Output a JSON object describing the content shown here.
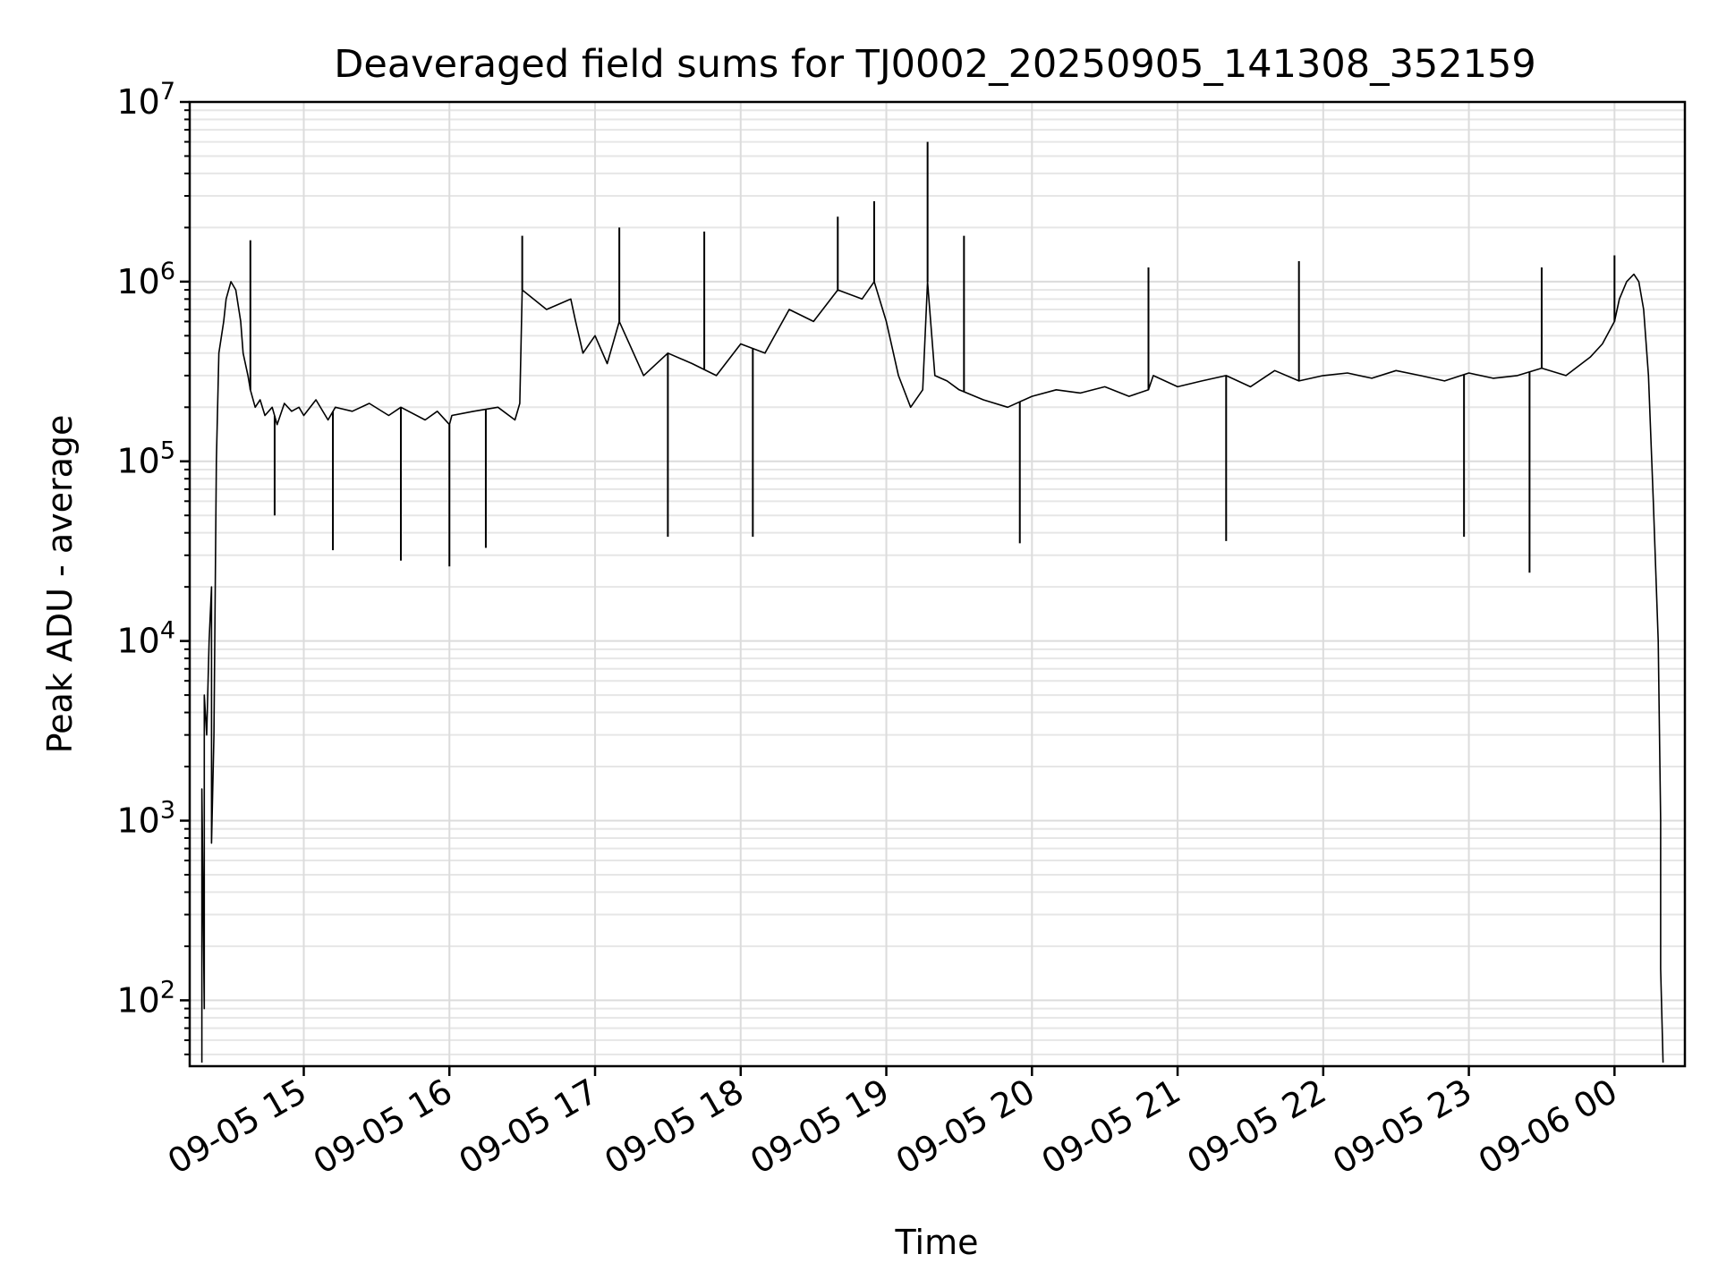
{
  "chart_data": {
    "type": "line",
    "title": "Deaveraged field sums for TJ0002_20250905_141308_352159",
    "xlabel": "Time",
    "ylabel": "Peak ADU - average",
    "yscale": "log",
    "ylim": [
      43,
      10000000
    ],
    "xlim": [
      "2025-09-05 14:13",
      "2025-09-06 00:29"
    ],
    "grid": true,
    "line_color": "#000000",
    "x_ticks": [
      {
        "x": "2025-09-05 15:00",
        "label": "09-05 15"
      },
      {
        "x": "2025-09-05 16:00",
        "label": "09-05 16"
      },
      {
        "x": "2025-09-05 17:00",
        "label": "09-05 17"
      },
      {
        "x": "2025-09-05 18:00",
        "label": "09-05 18"
      },
      {
        "x": "2025-09-05 19:00",
        "label": "09-05 19"
      },
      {
        "x": "2025-09-05 20:00",
        "label": "09-05 20"
      },
      {
        "x": "2025-09-05 21:00",
        "label": "09-05 21"
      },
      {
        "x": "2025-09-05 22:00",
        "label": "09-05 22"
      },
      {
        "x": "2025-09-05 23:00",
        "label": "09-05 23"
      },
      {
        "x": "2025-09-06 00:00",
        "label": "09-06 00"
      }
    ],
    "y_ticks": [
      {
        "value": 100,
        "base": "10",
        "exp": "2"
      },
      {
        "value": 1000,
        "base": "10",
        "exp": "3"
      },
      {
        "value": 10000,
        "base": "10",
        "exp": "4"
      },
      {
        "value": 100000,
        "base": "10",
        "exp": "5"
      },
      {
        "value": 1000000,
        "base": "10",
        "exp": "6"
      },
      {
        "value": 10000000,
        "base": "10",
        "exp": "7"
      }
    ],
    "series": [
      {
        "x": [
          "2025-09-05 14:18",
          "2025-09-05 14:18",
          "2025-09-05 14:19",
          "2025-09-05 14:19",
          "2025-09-05 14:20",
          "2025-09-05 14:21",
          "2025-09-05 14:22",
          "2025-09-05 14:22",
          "2025-09-05 14:23",
          "2025-09-05 14:24",
          "2025-09-05 14:25",
          "2025-09-05 14:27",
          "2025-09-05 14:28",
          "2025-09-05 14:30",
          "2025-09-05 14:32",
          "2025-09-05 14:34",
          "2025-09-05 14:35",
          "2025-09-05 14:37",
          "2025-09-05 14:38",
          "2025-09-05 14:40",
          "2025-09-05 14:42",
          "2025-09-05 14:44",
          "2025-09-05 14:47",
          "2025-09-05 14:49",
          "2025-09-05 14:52",
          "2025-09-05 14:55",
          "2025-09-05 14:58",
          "2025-09-05 15:00",
          "2025-09-05 15:05",
          "2025-09-05 15:10",
          "2025-09-05 15:13",
          "2025-09-05 15:20",
          "2025-09-05 15:27",
          "2025-09-05 15:35",
          "2025-09-05 15:40",
          "2025-09-05 15:50",
          "2025-09-05 15:55",
          "2025-09-05 16:00",
          "2025-09-05 16:01",
          "2025-09-05 16:10",
          "2025-09-05 16:20",
          "2025-09-05 16:27",
          "2025-09-05 16:29",
          "2025-09-05 16:30",
          "2025-09-05 16:40",
          "2025-09-05 16:50",
          "2025-09-05 16:52",
          "2025-09-05 16:55",
          "2025-09-05 17:00",
          "2025-09-05 17:05",
          "2025-09-05 17:10",
          "2025-09-05 17:20",
          "2025-09-05 17:30",
          "2025-09-05 17:40",
          "2025-09-05 17:50",
          "2025-09-05 18:00",
          "2025-09-05 18:10",
          "2025-09-05 18:20",
          "2025-09-05 18:30",
          "2025-09-05 18:40",
          "2025-09-05 18:50",
          "2025-09-05 18:55",
          "2025-09-05 19:00",
          "2025-09-05 19:05",
          "2025-09-05 19:10",
          "2025-09-05 19:15",
          "2025-09-05 19:17",
          "2025-09-05 19:20",
          "2025-09-05 19:25",
          "2025-09-05 19:30",
          "2025-09-05 19:40",
          "2025-09-05 19:50",
          "2025-09-05 20:00",
          "2025-09-05 20:10",
          "2025-09-05 20:20",
          "2025-09-05 20:30",
          "2025-09-05 20:40",
          "2025-09-05 20:48",
          "2025-09-05 20:50",
          "2025-09-05 21:00",
          "2025-09-05 21:10",
          "2025-09-05 21:20",
          "2025-09-05 21:30",
          "2025-09-05 21:40",
          "2025-09-05 21:50",
          "2025-09-05 22:00",
          "2025-09-05 22:10",
          "2025-09-05 22:20",
          "2025-09-05 22:30",
          "2025-09-05 22:40",
          "2025-09-05 22:50",
          "2025-09-05 23:00",
          "2025-09-05 23:10",
          "2025-09-05 23:20",
          "2025-09-05 23:30",
          "2025-09-05 23:40",
          "2025-09-05 23:50",
          "2025-09-05 23:55",
          "2025-09-06 00:00",
          "2025-09-06 00:02",
          "2025-09-06 00:05",
          "2025-09-06 00:08",
          "2025-09-06 00:10",
          "2025-09-06 00:12",
          "2025-09-06 00:14",
          "2025-09-06 00:16",
          "2025-09-06 00:18",
          "2025-09-06 00:19",
          "2025-09-06 00:19",
          "2025-09-06 00:20"
        ],
        "values": [
          45,
          1500,
          90,
          5000,
          3000,
          10000,
          20000,
          750,
          3000,
          100000,
          400000,
          600000,
          800000,
          1000000,
          900000,
          600000,
          400000,
          300000,
          250000,
          200000,
          220000,
          180000,
          200000,
          160000,
          210000,
          190000,
          200000,
          180000,
          220000,
          170000,
          200000,
          190000,
          210000,
          180000,
          200000,
          170000,
          190000,
          160000,
          180000,
          190000,
          200000,
          170000,
          210000,
          900000,
          700000,
          800000,
          600000,
          400000,
          500000,
          350000,
          600000,
          300000,
          400000,
          350000,
          300000,
          450000,
          400000,
          700000,
          600000,
          900000,
          800000,
          1000000,
          600000,
          300000,
          200000,
          250000,
          1000000,
          300000,
          280000,
          250000,
          220000,
          200000,
          230000,
          250000,
          240000,
          260000,
          230000,
          250000,
          300000,
          260000,
          280000,
          300000,
          260000,
          320000,
          280000,
          300000,
          310000,
          290000,
          320000,
          300000,
          280000,
          310000,
          290000,
          300000,
          330000,
          300000,
          380000,
          450000,
          600000,
          800000,
          1000000,
          1100000,
          1000000,
          700000,
          300000,
          60000,
          10000,
          1000,
          150,
          45
        ]
      }
    ],
    "spikes_up": [
      {
        "x": "2025-09-05 14:38",
        "value": 1700000
      },
      {
        "x": "2025-09-05 16:30",
        "value": 1800000
      },
      {
        "x": "2025-09-05 17:10",
        "value": 2000000
      },
      {
        "x": "2025-09-05 17:45",
        "value": 1900000
      },
      {
        "x": "2025-09-05 18:40",
        "value": 2300000
      },
      {
        "x": "2025-09-05 18:55",
        "value": 2800000
      },
      {
        "x": "2025-09-05 19:17",
        "value": 6000000
      },
      {
        "x": "2025-09-05 19:32",
        "value": 1800000
      },
      {
        "x": "2025-09-05 20:48",
        "value": 1200000
      },
      {
        "x": "2025-09-05 21:50",
        "value": 1300000
      },
      {
        "x": "2025-09-05 23:30",
        "value": 1200000
      },
      {
        "x": "2025-09-06 00:00",
        "value": 1400000
      }
    ],
    "spikes_down": [
      {
        "x": "2025-09-05 14:48",
        "value": 50000
      },
      {
        "x": "2025-09-05 15:12",
        "value": 32000
      },
      {
        "x": "2025-09-05 15:40",
        "value": 28000
      },
      {
        "x": "2025-09-05 16:00",
        "value": 26000
      },
      {
        "x": "2025-09-05 16:15",
        "value": 33000
      },
      {
        "x": "2025-09-05 17:30",
        "value": 38000
      },
      {
        "x": "2025-09-05 18:05",
        "value": 38000
      },
      {
        "x": "2025-09-05 19:55",
        "value": 35000
      },
      {
        "x": "2025-09-05 21:20",
        "value": 36000
      },
      {
        "x": "2025-09-05 22:58",
        "value": 38000
      },
      {
        "x": "2025-09-05 23:25",
        "value": 24000
      }
    ]
  }
}
